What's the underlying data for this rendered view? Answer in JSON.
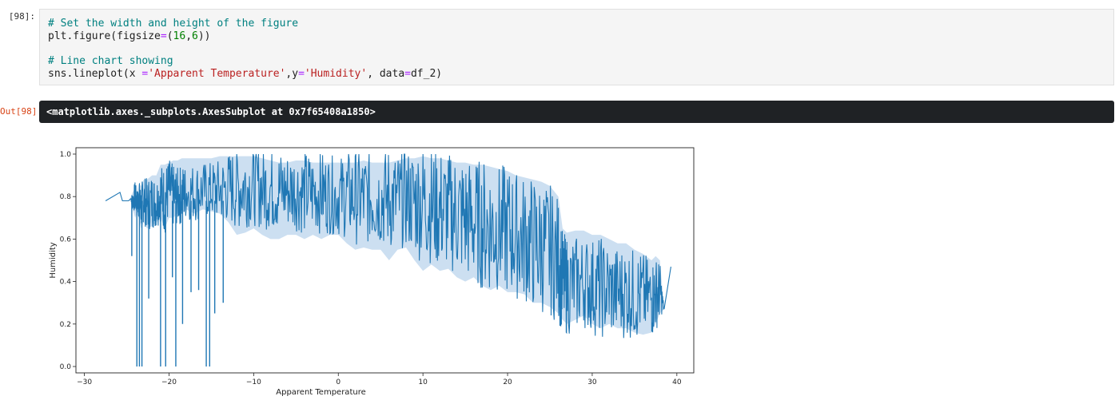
{
  "input_prompt": "[98]:",
  "output_prompt": "Out[98]",
  "code": {
    "comment1": "# Set the width and height of the figure",
    "line1_fn": "plt.figure(figsize",
    "line1_eq": "=",
    "line1_open": "(",
    "line1_n1": "16",
    "line1_comma": ",",
    "line1_n2": "6",
    "line1_close": "))",
    "comment2": "# Line chart showing",
    "line2_fn": "sns.lineplot(x ",
    "line2_eq1": "=",
    "line2_s1": "'Apparent Temperature'",
    "line2_mid": ",y",
    "line2_eq2": "=",
    "line2_s2": "'Humidity'",
    "line2_mid2": ", data",
    "line2_eq3": "=",
    "line2_end": "df_2)"
  },
  "output_text": "<matplotlib.axes._subplots.AxesSubplot at 0x7f65408a1850>",
  "colors": {
    "line": "#1f77b4",
    "band": "#c6dbef",
    "output_bg": "#1f2225"
  },
  "chart_data": {
    "type": "line",
    "title": "",
    "xlabel": "Apparent Temperature",
    "ylabel": "Humidity",
    "xlim": [
      -31,
      42
    ],
    "ylim": [
      -0.03,
      1.03
    ],
    "xticks": [
      -30,
      -20,
      -10,
      0,
      10,
      20,
      30,
      40
    ],
    "xtick_labels": [
      "−30",
      "−20",
      "−10",
      "0",
      "10",
      "20",
      "30",
      "40"
    ],
    "yticks": [
      0.0,
      0.2,
      0.4,
      0.6,
      0.8,
      1.0
    ],
    "ytick_labels": [
      "0.0",
      "0.2",
      "0.4",
      "0.6",
      "0.8",
      "1.0"
    ],
    "grid": false,
    "series": [
      {
        "x": [
          -27.5,
          -25.8,
          -25.5,
          -24.8,
          -24.5,
          -24.3,
          -24.0,
          -23.8,
          -23.6,
          -23.3,
          -23.0,
          -22.6,
          -22.0,
          -21.5,
          -21.0,
          -20.5,
          -20.0,
          -19.5,
          -19.0,
          -18.5,
          -18.0,
          -17.0,
          -16.0,
          -15.0,
          -14.0,
          -13.0,
          -12.0,
          -11.0,
          -10.0,
          -9.0,
          -8.0,
          -7.0,
          -6.0,
          -5.0,
          -4.0,
          -3.0,
          -2.0,
          -1.0,
          0.0,
          1.0,
          2.0,
          3.0,
          4.0,
          5.0,
          6.0,
          7.0,
          8.0,
          9.0,
          10.0,
          11.0,
          12.0,
          13.0,
          14.0,
          15.0,
          16.0,
          17.0,
          18.0,
          19.0,
          20.0,
          21.0,
          22.0,
          23.0,
          24.0,
          25.0,
          26.0,
          26.5,
          27.0,
          28.0,
          29.0,
          30.0,
          31.0,
          32.0,
          33.0,
          34.0,
          35.0,
          36.0,
          37.0,
          37.5,
          38.0,
          38.5,
          39.3
        ],
        "mean": [
          0.78,
          0.82,
          0.78,
          0.78,
          0.79,
          0.78,
          0.8,
          0.77,
          0.79,
          0.75,
          0.79,
          0.76,
          0.78,
          0.77,
          0.82,
          0.78,
          0.84,
          0.8,
          0.8,
          0.81,
          0.82,
          0.82,
          0.83,
          0.83,
          0.83,
          0.84,
          0.84,
          0.85,
          0.85,
          0.84,
          0.84,
          0.83,
          0.83,
          0.83,
          0.82,
          0.82,
          0.82,
          0.81,
          0.8,
          0.81,
          0.8,
          0.79,
          0.8,
          0.79,
          0.79,
          0.78,
          0.79,
          0.78,
          0.78,
          0.76,
          0.74,
          0.73,
          0.72,
          0.7,
          0.68,
          0.67,
          0.66,
          0.65,
          0.64,
          0.62,
          0.6,
          0.58,
          0.56,
          0.55,
          0.5,
          0.4,
          0.38,
          0.39,
          0.4,
          0.38,
          0.37,
          0.36,
          0.35,
          0.35,
          0.34,
          0.33,
          0.32,
          0.34,
          0.36,
          0.27,
          0.47
        ],
        "lower": [
          0.78,
          0.82,
          0.78,
          0.78,
          0.78,
          0.74,
          0.7,
          0.72,
          0.7,
          0.65,
          0.68,
          0.65,
          0.66,
          0.68,
          0.7,
          0.65,
          0.7,
          0.7,
          0.72,
          0.72,
          0.74,
          0.72,
          0.74,
          0.73,
          0.72,
          0.68,
          0.62,
          0.63,
          0.65,
          0.62,
          0.6,
          0.6,
          0.62,
          0.62,
          0.6,
          0.62,
          0.6,
          0.62,
          0.62,
          0.58,
          0.55,
          0.56,
          0.55,
          0.55,
          0.5,
          0.55,
          0.56,
          0.5,
          0.45,
          0.48,
          0.45,
          0.46,
          0.42,
          0.4,
          0.42,
          0.38,
          0.36,
          0.38,
          0.35,
          0.35,
          0.34,
          0.3,
          0.3,
          0.28,
          0.25,
          0.22,
          0.2,
          0.22,
          0.24,
          0.2,
          0.18,
          0.2,
          0.18,
          0.18,
          0.16,
          0.15,
          0.16,
          0.2,
          0.25,
          0.27,
          0.47
        ],
        "upper": [
          0.78,
          0.82,
          0.78,
          0.78,
          0.8,
          0.82,
          0.84,
          0.82,
          0.86,
          0.85,
          0.88,
          0.88,
          0.9,
          0.9,
          0.95,
          0.95,
          0.96,
          0.97,
          0.97,
          0.98,
          0.98,
          0.98,
          0.98,
          0.98,
          0.99,
          0.99,
          0.99,
          0.99,
          0.99,
          0.98,
          0.97,
          0.96,
          0.96,
          0.97,
          0.97,
          0.96,
          0.96,
          0.96,
          0.96,
          0.96,
          0.96,
          0.97,
          0.96,
          0.96,
          0.96,
          0.97,
          0.98,
          0.98,
          0.99,
          0.98,
          0.98,
          0.97,
          0.96,
          0.96,
          0.95,
          0.95,
          0.94,
          0.93,
          0.92,
          0.9,
          0.89,
          0.88,
          0.87,
          0.85,
          0.8,
          0.65,
          0.63,
          0.64,
          0.64,
          0.62,
          0.62,
          0.6,
          0.58,
          0.58,
          0.55,
          0.53,
          0.5,
          0.52,
          0.5,
          0.27,
          0.47
        ]
      }
    ],
    "spikes": [
      {
        "x": -23.8,
        "y": 0.0
      },
      {
        "x": -23.5,
        "y": 0.0
      },
      {
        "x": -23.2,
        "y": 0.0
      },
      {
        "x": -21.0,
        "y": 0.0
      },
      {
        "x": -20.4,
        "y": 0.0
      },
      {
        "x": -19.2,
        "y": 0.0
      },
      {
        "x": -15.6,
        "y": 0.0
      },
      {
        "x": -15.2,
        "y": 0.0
      },
      {
        "x": -24.4,
        "y": 0.52
      },
      {
        "x": -22.4,
        "y": 0.32
      },
      {
        "x": -18.4,
        "y": 0.2
      },
      {
        "x": -17.4,
        "y": 0.35
      },
      {
        "x": -14.6,
        "y": 0.25
      },
      {
        "x": -13.6,
        "y": 0.3
      },
      {
        "x": -16.5,
        "y": 0.36
      },
      {
        "x": -19.6,
        "y": 0.42
      }
    ]
  }
}
